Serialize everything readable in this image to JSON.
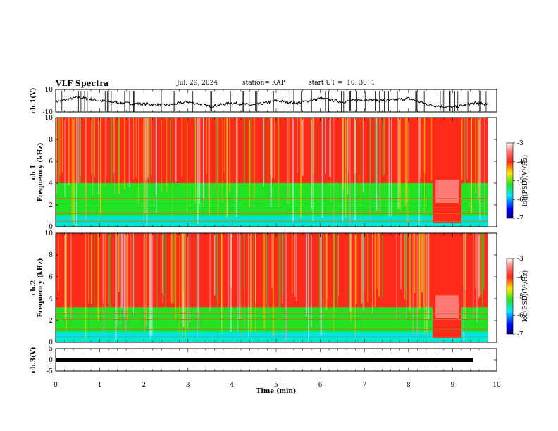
{
  "header": {
    "title": "VLF Spectra",
    "date": "Jul. 29, 2024",
    "station": "station= KAP",
    "start": "start UT =  10: 30: 1"
  },
  "chart_data": [
    {
      "type": "line",
      "panel": "ch1-waveform",
      "ylabel": "ch.1(V)",
      "ylim": [
        -10,
        10
      ],
      "yticks": [
        "10",
        "-10"
      ],
      "xlim": [
        0,
        10
      ],
      "x": [
        0,
        0.5,
        1,
        1.5,
        2,
        2.5,
        3,
        3.5,
        4,
        4.5,
        5,
        5.5,
        6,
        6.5,
        7,
        7.5,
        8,
        8.5,
        9,
        9.5,
        9.8
      ],
      "y": [
        -1,
        3,
        0,
        -2,
        -3,
        -4,
        -1,
        -5,
        -2,
        -4,
        0,
        -2,
        2,
        -1,
        1,
        0,
        2,
        -4,
        -6,
        -2,
        -3
      ]
    },
    {
      "type": "heatmap",
      "panel": "ch1-spectrogram",
      "ylabel": "ch.1\nFrequency (kHz)",
      "ylim": [
        0,
        10
      ],
      "yticks": [
        "0",
        "2",
        "4",
        "6",
        "8",
        "10"
      ],
      "xlim": [
        0,
        10
      ],
      "colorbar": {
        "label": "log(PSD)(V²/Hz)",
        "range": [
          -7,
          -3
        ],
        "ticks": [
          "-3",
          "-4",
          "-5",
          "-6",
          "-7"
        ]
      },
      "bands": [
        {
          "from_khz": 0,
          "to_khz": 1,
          "level": -5.2
        },
        {
          "from_khz": 1,
          "to_khz": 4,
          "level": -4.9
        },
        {
          "from_khz": 4,
          "to_khz": 10,
          "level": -3.9
        }
      ],
      "event_window_min": [
        8.55,
        9.2
      ]
    },
    {
      "type": "heatmap",
      "panel": "ch2-spectrogram",
      "ylabel": "ch.2\nFrequency (kHz)",
      "ylim": [
        0,
        10
      ],
      "yticks": [
        "0",
        "2",
        "4",
        "6",
        "8",
        "10"
      ],
      "xlim": [
        0,
        10
      ],
      "colorbar": {
        "label": "log(PSD)(V²/Hz)",
        "range": [
          -7,
          -3
        ],
        "ticks": [
          "-3",
          "-4",
          "-5",
          "-6",
          "-7"
        ]
      },
      "bands": [
        {
          "from_khz": 0,
          "to_khz": 1,
          "level": -5.3
        },
        {
          "from_khz": 1,
          "to_khz": 3.2,
          "level": -5.0
        },
        {
          "from_khz": 3.2,
          "to_khz": 10,
          "level": -3.8
        }
      ],
      "event_window_min": [
        8.55,
        9.2
      ]
    },
    {
      "type": "line",
      "panel": "ch3-waveform",
      "ylabel": "ch.3(V)",
      "ylim": [
        -5,
        5
      ],
      "yticks": [
        "5",
        "0",
        "-5"
      ],
      "xlim": [
        0,
        10
      ],
      "x": [
        0,
        9.8
      ],
      "y": [
        0,
        0
      ]
    }
  ],
  "xaxis": {
    "label": "Time (min)",
    "ticks": [
      "0",
      "1",
      "2",
      "3",
      "4",
      "5",
      "6",
      "7",
      "8",
      "9",
      "10"
    ]
  },
  "colors": {
    "high": "#ff2a1a",
    "mid": "#ffe600",
    "low": "#22e022",
    "floor": "#00e5d0",
    "trace": "#000000"
  }
}
